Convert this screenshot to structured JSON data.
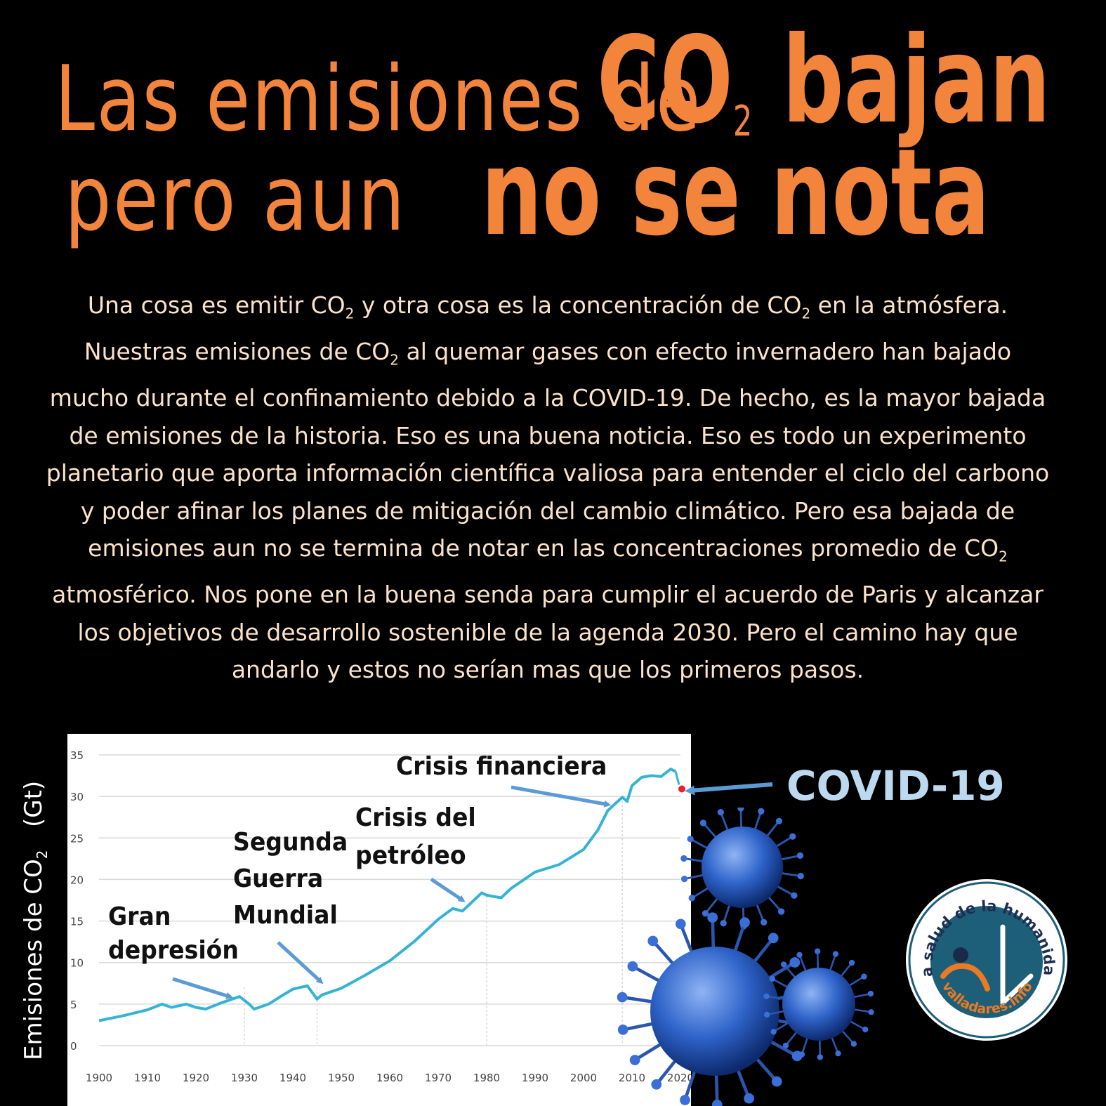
{
  "title": {
    "line1_light": "Las emisiones de",
    "line1_bold": "CO",
    "line1_sub": "2",
    "line1_bold_end": "bajan",
    "line2_light": "pero aun",
    "line2_bold": "no se nota"
  },
  "body": {
    "p1": "Una cosa es emitir CO",
    "p2": "y otra cosa es la concentración de CO",
    "p3": "en la atmósfera.",
    "p4": "Nuestras emisiones de CO",
    "p5": "al quemar gases con efecto invernadero  han bajado mucho durante el confinamiento debido a la COVID-19. De hecho, es la mayor bajada de emisiones de la historia. Eso es una buena noticia. Eso es todo un experimento planetario que aporta información científica valiosa para entender el ciclo del carbono y poder afinar los planes de mitigación del cambio climático. Pero esa bajada de emisiones aun no se termina de notar en las concentraciones promedio de CO",
    "p6": "atmosférico. Nos pone en la buena senda para cumplir el acuerdo de Paris y alcanzar los objetivos de desarrollo sostenible de la agenda 2030. Pero el camino hay que andarlo y estos no serían mas que los primeros pasos.",
    "sub": "2"
  },
  "chart_data": {
    "type": "line",
    "ylabel": "Emisiones de CO",
    "ylabel_sub": "2",
    "ylabel_unit": "(Gt)",
    "xlim": [
      1900,
      2020
    ],
    "ylim": [
      0,
      35
    ],
    "x_ticks": [
      1900,
      1910,
      1920,
      1930,
      1940,
      1950,
      1960,
      1970,
      1980,
      1990,
      2000,
      2010,
      2020
    ],
    "y_ticks": [
      0,
      5,
      10,
      15,
      20,
      25,
      30,
      35
    ],
    "x": [
      1900,
      1905,
      1910,
      1913,
      1915,
      1918,
      1920,
      1922,
      1925,
      1929,
      1931,
      1932,
      1935,
      1938,
      1940,
      1943,
      1945,
      1946,
      1950,
      1955,
      1960,
      1965,
      1970,
      1973,
      1975,
      1979,
      1980,
      1983,
      1985,
      1990,
      1995,
      2000,
      2003,
      2005,
      2008,
      2009,
      2010,
      2012,
      2014,
      2016,
      2018,
      2019,
      2020
    ],
    "y": [
      3.0,
      3.6,
      4.3,
      5.0,
      4.6,
      5.0,
      4.6,
      4.4,
      5.1,
      5.9,
      5.0,
      4.4,
      5.0,
      6.1,
      6.8,
      7.2,
      5.6,
      6.1,
      6.9,
      8.5,
      10.2,
      12.5,
      15.2,
      16.5,
      16.2,
      18.4,
      18.1,
      17.8,
      18.9,
      20.9,
      21.8,
      23.6,
      26.0,
      28.3,
      29.9,
      29.4,
      31.3,
      32.3,
      32.5,
      32.4,
      33.3,
      33.0,
      30.9
    ],
    "highlight_point": {
      "x": 2020,
      "y": 30.9,
      "color": "#e8242a"
    },
    "line_color": "#35b3d3",
    "grid": true,
    "annotations": [
      {
        "text": "Gran\ndepresión",
        "x": 1928,
        "y": 5.7
      },
      {
        "text": "Segunda\nGuerra\nMundial",
        "x": 1945,
        "y": 5.5
      },
      {
        "text": "Crisis del\npetróleo",
        "x": 1976,
        "y": 17.5
      },
      {
        "text": "Crisis financiera",
        "x": 2008,
        "y": 29.5
      },
      {
        "text": "COVID-19",
        "x": 2020,
        "y": 30.9
      }
    ]
  },
  "logo": {
    "arc_text": "La salud de la humanidad",
    "bottom_text": "valladares.info"
  },
  "colors": {
    "title": "#f3843c",
    "body_text": "#fbe2c8",
    "covid_label": "#bcd9f0",
    "arrow": "#5b9bd5",
    "virus": "#2e63c9"
  }
}
